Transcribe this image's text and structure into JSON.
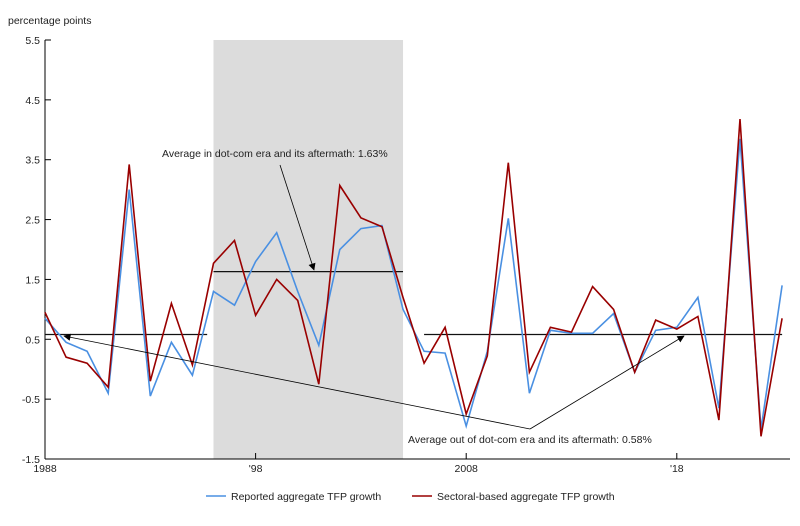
{
  "chart_data": {
    "type": "line",
    "ylabel": "percentage points",
    "ylim": [
      -1.5,
      5.5
    ],
    "yticks": [
      "5.5",
      "4.5",
      "3.5",
      "2.5",
      "1.5",
      "0.5",
      "-0.5",
      "-1.5"
    ],
    "xticks": [
      {
        "year": 1988,
        "label": "1988"
      },
      {
        "year": 1998,
        "label": "'98"
      },
      {
        "year": 2008,
        "label": "2008"
      },
      {
        "year": 2018,
        "label": "'18"
      }
    ],
    "x": [
      1988,
      1989,
      1990,
      1991,
      1992,
      1993,
      1994,
      1995,
      1996,
      1997,
      1998,
      1999,
      2000,
      2001,
      2002,
      2003,
      2004,
      2005,
      2006,
      2007,
      2008,
      2009,
      2010,
      2011,
      2012,
      2013,
      2014,
      2015,
      2016,
      2017,
      2018,
      2019,
      2020,
      2021,
      2022,
      2023
    ],
    "series": [
      {
        "name": "Reported aggregate TFP growth",
        "color": "#4a90e2",
        "values": [
          0.85,
          0.45,
          0.3,
          -0.4,
          3.0,
          -0.45,
          0.45,
          -0.1,
          1.3,
          1.07,
          1.8,
          2.28,
          1.3,
          0.4,
          2.0,
          2.35,
          2.4,
          1.0,
          0.3,
          0.27,
          -0.95,
          0.3,
          2.52,
          -0.4,
          0.65,
          0.6,
          0.6,
          0.93,
          -0.05,
          0.65,
          0.7,
          1.2,
          -0.65,
          3.85,
          -1.0,
          1.4
        ]
      },
      {
        "name": "Sectoral-based aggregate TFP growth",
        "color": "#990000",
        "values": [
          0.95,
          0.2,
          0.1,
          -0.3,
          3.42,
          -0.2,
          1.1,
          0.07,
          1.77,
          2.15,
          0.9,
          1.5,
          1.15,
          -0.25,
          3.07,
          2.53,
          2.38,
          1.2,
          0.1,
          0.7,
          -0.75,
          0.22,
          3.45,
          -0.05,
          0.7,
          0.62,
          1.38,
          1.0,
          -0.05,
          0.82,
          0.67,
          0.88,
          -0.85,
          4.18,
          -1.12,
          0.85
        ]
      }
    ],
    "shaded_region": {
      "from": 1996,
      "to": 2005,
      "color": "#dcdcdc"
    },
    "reference_lines": [
      {
        "value": 1.63,
        "from": 1996,
        "to": 2005
      },
      {
        "value": 0.58,
        "from": 1988,
        "to": 1995.7
      },
      {
        "value": 0.58,
        "from": 2006,
        "to": 2023
      }
    ],
    "annotations": [
      {
        "text": "Average in dot-com era and its aftermath: 1.63%"
      },
      {
        "text": "Average out of dot-com era and its aftermath: 0.58%"
      }
    ],
    "legend": "bottom",
    "grid": false
  }
}
